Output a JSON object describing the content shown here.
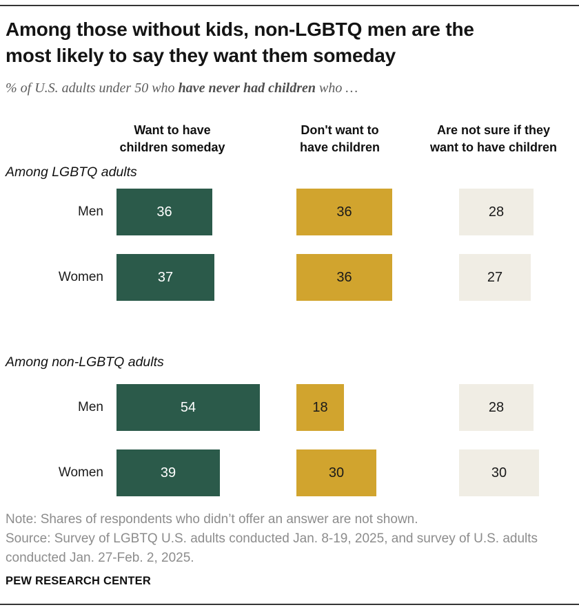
{
  "header": {
    "title_lines": [
      "Among those without kids, non-LGBTQ men are the",
      "most likely to say they want them someday"
    ],
    "subtitle": {
      "prefix": "% of U.S. adults under 50 who ",
      "bold": "have never had children",
      "suffix": " who …"
    }
  },
  "chart_data": {
    "type": "bar",
    "unit": "percent",
    "value_range": [
      0,
      100
    ],
    "column_headers": [
      {
        "lines": [
          "Want to have",
          "children someday"
        ]
      },
      {
        "lines": [
          "Don't want to",
          "have children"
        ]
      },
      {
        "lines": [
          "Are not sure if they",
          "want to have children"
        ]
      }
    ],
    "colors": {
      "want_children": "#2b5a4a",
      "dont_want_children": "#d1a42e",
      "not_sure": "#f0ede4",
      "label_on_dark": "#ffffff",
      "label_on_light": "#1a1a1a"
    },
    "groups": [
      {
        "label": "Among LGBTQ adults",
        "rows": [
          {
            "label": "Men",
            "values": [
              36,
              36,
              28
            ]
          },
          {
            "label": "Women",
            "values": [
              37,
              36,
              27
            ]
          }
        ]
      },
      {
        "label": "Among non-LGBTQ adults",
        "rows": [
          {
            "label": "Men",
            "values": [
              54,
              18,
              28
            ]
          },
          {
            "label": "Women",
            "values": [
              39,
              30,
              30
            ]
          }
        ]
      }
    ]
  },
  "footer": {
    "note": "Note: Shares of respondents who didn’t offer an answer are not shown.",
    "source_lines": [
      "Source: Survey of LGBTQ U.S. adults conducted Jan. 8-19, 2025, and survey of U.S. adults",
      "conducted Jan. 27-Feb. 2, 2025."
    ],
    "brand": "PEW RESEARCH CENTER"
  }
}
